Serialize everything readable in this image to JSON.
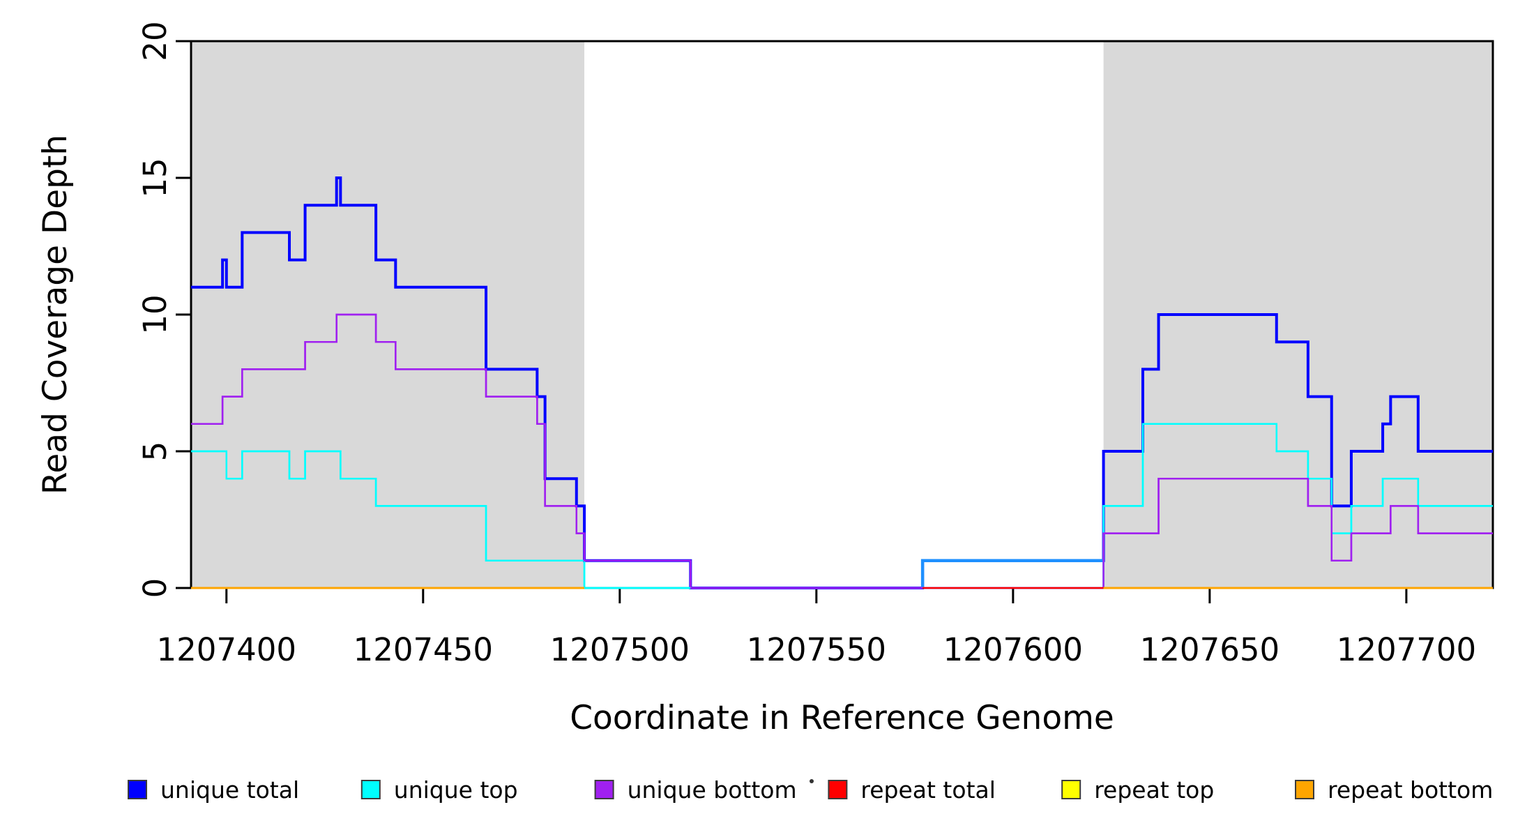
{
  "figure": {
    "x_axis_title": "Coordinate in Reference Genome",
    "y_axis_title": "Read Coverage Depth"
  },
  "axes": {
    "x": {
      "range": [
        1207391,
        1207722
      ],
      "ticks": [
        1207400,
        1207450,
        1207500,
        1207550,
        1207600,
        1207650,
        1207700
      ],
      "tick_labels": [
        "1207400",
        "1207450",
        "1207500",
        "1207550",
        "1207600",
        "1207650",
        "1207700"
      ]
    },
    "y": {
      "range": [
        0,
        20
      ],
      "ticks": [
        0,
        5,
        10,
        15,
        20
      ],
      "tick_labels": [
        "0",
        "5",
        "10",
        "15",
        "20"
      ]
    }
  },
  "legend": {
    "items": [
      {
        "label": "unique total",
        "color": "#0000FF"
      },
      {
        "label": "unique top",
        "color": "#00FFFF"
      },
      {
        "label": "unique bottom",
        "color": "#A020F0"
      },
      {
        "label": "repeat total",
        "color": "#FF0000"
      },
      {
        "label": "repeat top",
        "color": "#FFFF00"
      },
      {
        "label": "repeat bottom",
        "color": "#FFA500"
      }
    ],
    "stray_dot": true
  },
  "chart_data": {
    "type": "line",
    "subtype": "step-post",
    "title": "",
    "xlabel": "Coordinate in Reference Genome",
    "ylabel": "Read Coverage Depth",
    "xlim": [
      1207391,
      1207722
    ],
    "ylim": [
      0,
      20
    ],
    "grid": false,
    "legend_position": "bottom",
    "background_color": "#FFFFFF",
    "shaded_region_color": "#D9D9D9",
    "shaded_regions": [
      {
        "from": 1207391,
        "to": 1207491
      },
      {
        "from": 1207623,
        "to": 1207722
      }
    ],
    "series": [
      {
        "name": "unique total",
        "color": "#0000FF",
        "width": 4,
        "draw": true,
        "steps": [
          [
            1207391,
            11
          ],
          [
            1207399,
            12
          ],
          [
            1207400,
            11
          ],
          [
            1207404,
            13
          ],
          [
            1207416,
            12
          ],
          [
            1207420,
            14
          ],
          [
            1207428,
            15
          ],
          [
            1207429,
            14
          ],
          [
            1207438,
            12
          ],
          [
            1207443,
            11
          ],
          [
            1207466,
            8
          ],
          [
            1207479,
            7
          ],
          [
            1207481,
            4
          ],
          [
            1207489,
            3
          ],
          [
            1207491,
            1
          ],
          [
            1207518,
            0
          ],
          [
            1207577,
            1
          ],
          [
            1207623,
            5
          ],
          [
            1207633,
            8
          ],
          [
            1207637,
            10
          ],
          [
            1207667,
            9
          ],
          [
            1207675,
            7
          ],
          [
            1207681,
            3
          ],
          [
            1207686,
            5
          ],
          [
            1207694,
            6
          ],
          [
            1207696,
            7
          ],
          [
            1207703,
            5
          ]
        ]
      },
      {
        "name": "unique top",
        "color": "#00FFFF",
        "width": 2.5,
        "draw": true,
        "steps": [
          [
            1207391,
            5
          ],
          [
            1207400,
            4
          ],
          [
            1207404,
            5
          ],
          [
            1207416,
            4
          ],
          [
            1207420,
            5
          ],
          [
            1207429,
            4
          ],
          [
            1207438,
            3
          ],
          [
            1207466,
            1
          ],
          [
            1207491,
            0
          ],
          [
            1207623,
            3
          ],
          [
            1207633,
            6
          ],
          [
            1207667,
            5
          ],
          [
            1207675,
            4
          ],
          [
            1207681,
            2
          ],
          [
            1207686,
            3
          ],
          [
            1207694,
            4
          ],
          [
            1207703,
            3
          ]
        ]
      },
      {
        "name": "unique bottom",
        "color": "#A020F0",
        "width": 2.5,
        "draw": true,
        "steps": [
          [
            1207391,
            6
          ],
          [
            1207399,
            7
          ],
          [
            1207404,
            8
          ],
          [
            1207420,
            9
          ],
          [
            1207428,
            10
          ],
          [
            1207438,
            9
          ],
          [
            1207443,
            8
          ],
          [
            1207466,
            7
          ],
          [
            1207479,
            6
          ],
          [
            1207481,
            3
          ],
          [
            1207489,
            2
          ],
          [
            1207491,
            1
          ],
          [
            1207518,
            0
          ],
          [
            1207623,
            2
          ],
          [
            1207637,
            4
          ],
          [
            1207675,
            3
          ],
          [
            1207681,
            1
          ],
          [
            1207686,
            2
          ],
          [
            1207696,
            3
          ],
          [
            1207703,
            2
          ]
        ]
      },
      {
        "name": "repeat total",
        "color": "#FF0000",
        "width": 2.5,
        "draw": false,
        "steps": [
          [
            1207391,
            0
          ]
        ]
      },
      {
        "name": "repeat top",
        "color": "#FFFF00",
        "width": 2.5,
        "draw": false,
        "steps": [
          [
            1207391,
            0
          ]
        ]
      },
      {
        "name": "repeat bottom",
        "color": "#FFA500",
        "width": 3,
        "draw": false,
        "steps": [
          [
            1207391,
            0
          ]
        ]
      }
    ],
    "light_blue_segment": {
      "from": 1207577,
      "to": 1207623,
      "value": 1,
      "color": "#1E90FF"
    },
    "zero_level_visible_segments": [
      {
        "from": 1207391,
        "to": 1207491,
        "color": "#FFA500",
        "width": 3
      },
      {
        "from": 1207491,
        "to": 1207518,
        "color": "#00FFFF",
        "width": 2.5
      },
      {
        "from": 1207518,
        "to": 1207577,
        "color": "#A020F0",
        "width": 2.5
      },
      {
        "from": 1207577,
        "to": 1207623,
        "color": "#FF0000",
        "width": 2.5
      },
      {
        "from": 1207623,
        "to": 1207722,
        "color": "#FFA500",
        "width": 3
      }
    ]
  }
}
